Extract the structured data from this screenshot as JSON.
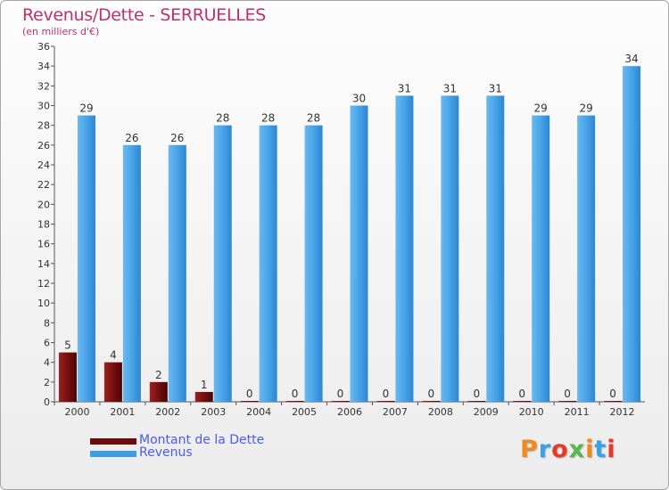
{
  "title": "Revenus/Dette - SERRUELLES",
  "subtitle": "(en milliers d'€)",
  "logo": "Proxiti",
  "chart_data": {
    "type": "bar",
    "categories": [
      "2000",
      "2001",
      "2002",
      "2003",
      "2004",
      "2005",
      "2006",
      "2007",
      "2008",
      "2009",
      "2010",
      "2011",
      "2012"
    ],
    "series": [
      {
        "name": "Montant de la Dette",
        "color": "#7a0f0f",
        "values": [
          5,
          4,
          2,
          1,
          0,
          0,
          0,
          0,
          0,
          0,
          0,
          0,
          0
        ]
      },
      {
        "name": "Revenus",
        "color": "#3f9de3",
        "values": [
          29,
          26,
          26,
          28,
          28,
          28,
          30,
          31,
          31,
          31,
          29,
          29,
          34
        ]
      }
    ],
    "ylim": [
      0,
      36
    ],
    "yticks": [
      0,
      2,
      4,
      6,
      8,
      10,
      12,
      14,
      16,
      18,
      20,
      22,
      24,
      26,
      28,
      30,
      32,
      34,
      36
    ],
    "grid": false,
    "legend": "bottom-left"
  }
}
